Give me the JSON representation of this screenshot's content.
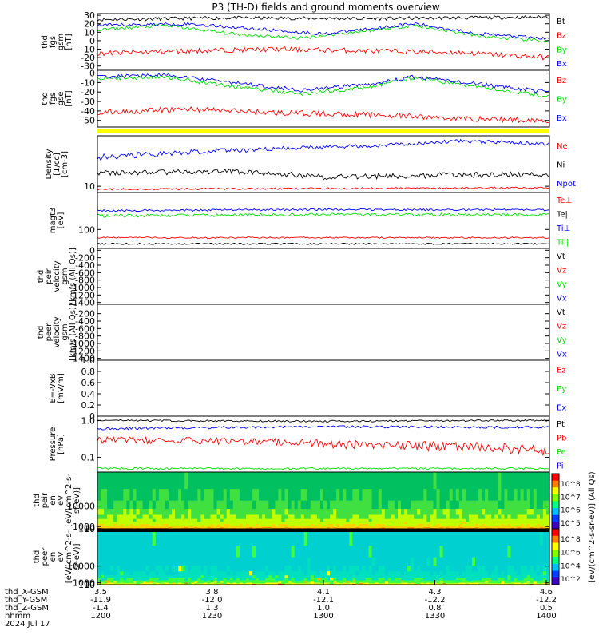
{
  "title": "P3 (TH-D) fields and ground moments overview",
  "chart_data": [
    {
      "type": "line",
      "panel": "fgs_gsm",
      "ylabel": [
        "thd",
        "fgs",
        "gsm",
        "[nT]"
      ],
      "yticks": [
        30,
        20,
        10,
        0,
        -10,
        -20,
        -30
      ],
      "ylim": [
        -35,
        32
      ],
      "series": [
        {
          "name": "Bt",
          "color": "#000000",
          "profile": [
            [
              0,
              25
            ],
            [
              0.3,
              27
            ],
            [
              0.6,
              26
            ],
            [
              0.8,
              27
            ],
            [
              1,
              28
            ]
          ],
          "noise": 2
        },
        {
          "name": "Bz",
          "color": "#ff0000",
          "profile": [
            [
              0,
              -15
            ],
            [
              0.2,
              -12
            ],
            [
              0.4,
              -10
            ],
            [
              0.6,
              -12
            ],
            [
              0.8,
              -14
            ],
            [
              1,
              -20
            ]
          ],
          "noise": 3
        },
        {
          "name": "By",
          "color": "#00dd00",
          "profile": [
            [
              0,
              13
            ],
            [
              0.15,
              18
            ],
            [
              0.3,
              8
            ],
            [
              0.45,
              3
            ],
            [
              0.6,
              12
            ],
            [
              0.7,
              18
            ],
            [
              0.85,
              5
            ],
            [
              1,
              -1
            ]
          ],
          "noise": 2
        },
        {
          "name": "Bx",
          "color": "#0000ff",
          "profile": [
            [
              0,
              18
            ],
            [
              0.2,
              20
            ],
            [
              0.4,
              12
            ],
            [
              0.5,
              8
            ],
            [
              0.7,
              20
            ],
            [
              0.85,
              8
            ],
            [
              1,
              2
            ]
          ],
          "noise": 2
        }
      ]
    },
    {
      "type": "line",
      "panel": "fgs_gse",
      "ylabel": [
        "thd",
        "fgs",
        "gse",
        "[nT]"
      ],
      "yticks": [
        0,
        -10,
        -20,
        -30,
        -40,
        -50
      ],
      "ylim": [
        -57,
        3
      ],
      "series": [
        {
          "name": "Bz",
          "color": "#ff0000",
          "profile": [
            [
              0,
              -42
            ],
            [
              0.2,
              -38
            ],
            [
              0.4,
              -42
            ],
            [
              0.6,
              -44
            ],
            [
              0.8,
              -48
            ],
            [
              1,
              -50
            ]
          ],
          "noise": 3
        },
        {
          "name": "By",
          "color": "#00dd00",
          "profile": [
            [
              0,
              -6
            ],
            [
              0.15,
              -4
            ],
            [
              0.3,
              -14
            ],
            [
              0.45,
              -22
            ],
            [
              0.6,
              -15
            ],
            [
              0.7,
              -5
            ],
            [
              0.85,
              -15
            ],
            [
              1,
              -25
            ]
          ],
          "noise": 2
        },
        {
          "name": "Bx",
          "color": "#0000ff",
          "profile": [
            [
              0,
              -4
            ],
            [
              0.15,
              -2
            ],
            [
              0.3,
              -10
            ],
            [
              0.45,
              -18
            ],
            [
              0.6,
              -12
            ],
            [
              0.7,
              -4
            ],
            [
              0.85,
              -12
            ],
            [
              1,
              -20
            ]
          ],
          "noise": 2
        }
      ]
    },
    {
      "type": "line",
      "panel": "density",
      "log": true,
      "ylabel": [
        "Density",
        "[1/cc]",
        "[cm-3]"
      ],
      "yticks": [
        10
      ],
      "ylim": [
        8,
        60
      ],
      "series": [
        {
          "name": "Ne",
          "color": "#ff0000",
          "profile": [
            [
              0,
              9
            ],
            [
              1,
              9.5
            ]
          ],
          "noise": 0.3
        },
        {
          "name": "Ni",
          "color": "#000000",
          "profile": [
            [
              0,
              16
            ],
            [
              0.3,
              17
            ],
            [
              0.5,
              14
            ],
            [
              0.8,
              15
            ],
            [
              1,
              15
            ]
          ],
          "noise": 1.5
        },
        {
          "name": "Npot",
          "color": "#0000ff",
          "profile": [
            [
              0,
              28
            ],
            [
              0.3,
              36
            ],
            [
              0.6,
              42
            ],
            [
              0.8,
              50
            ],
            [
              1,
              45
            ]
          ],
          "noise": 3
        }
      ]
    },
    {
      "type": "line",
      "panel": "temperature",
      "log": true,
      "ylabel": [
        "magt3",
        "[eV]"
      ],
      "yticks": [
        100
      ],
      "ylim": [
        25,
        1500
      ],
      "series": [
        {
          "name": "Te⊥",
          "color": "#ff0000",
          "profile": [
            [
              0,
              55
            ],
            [
              1,
              55
            ]
          ],
          "noise": 3
        },
        {
          "name": "Te||",
          "color": "#000000",
          "profile": [
            [
              0,
              35
            ],
            [
              1,
              35
            ]
          ],
          "noise": 2
        },
        {
          "name": "Ti⊥",
          "color": "#0000ff",
          "profile": [
            [
              0,
              400
            ],
            [
              0.5,
              430
            ],
            [
              1,
              420
            ]
          ],
          "noise": 30
        },
        {
          "name": "Ti||",
          "color": "#00dd00",
          "profile": [
            [
              0,
              270
            ],
            [
              0.5,
              300
            ],
            [
              1,
              290
            ]
          ],
          "noise": 30
        }
      ]
    },
    {
      "type": "line",
      "panel": "peir_velocity",
      "ylabel": [
        "thd",
        "peir",
        "velocity",
        "gsm",
        "[km/s (All Qs)]"
      ],
      "yticks": [
        0,
        -200,
        -400,
        -600,
        -800,
        -1000,
        -1200,
        -1400
      ],
      "ylim": [
        -1450,
        50
      ],
      "series": [
        {
          "name": "Vt",
          "color": "#000000"
        },
        {
          "name": "Vz",
          "color": "#ff0000"
        },
        {
          "name": "Vy",
          "color": "#00dd00"
        },
        {
          "name": "Vx",
          "color": "#0000ff"
        }
      ]
    },
    {
      "type": "line",
      "panel": "peer_velocity",
      "ylabel": [
        "thd",
        "peer",
        "velocity",
        "gsm",
        "[km/s (All Qs)]"
      ],
      "yticks": [
        -200,
        -400,
        -600,
        -800,
        -1000,
        -1200,
        -1400
      ],
      "ylim": [
        -1450,
        50
      ],
      "series": [
        {
          "name": "Vt",
          "color": "#000000"
        },
        {
          "name": "Vz",
          "color": "#ff0000"
        },
        {
          "name": "Vy",
          "color": "#00dd00"
        },
        {
          "name": "Vx",
          "color": "#0000ff"
        }
      ]
    },
    {
      "type": "line",
      "panel": "efield",
      "ylabel": [
        "E=-VxB",
        "[mV/m]"
      ],
      "yticks": [
        1.0,
        0.8,
        0.6,
        0.4,
        0.2,
        0.0
      ],
      "ylim": [
        0,
        1
      ],
      "series": [
        {
          "name": "Ez",
          "color": "#ff0000"
        },
        {
          "name": "Ey",
          "color": "#00dd00"
        },
        {
          "name": "Ex",
          "color": "#0000ff"
        }
      ]
    },
    {
      "type": "line",
      "panel": "pressure",
      "log": true,
      "ylabel": [
        "Pressure",
        "[nPa]"
      ],
      "yticks": [
        1.0,
        0.1
      ],
      "ylim": [
        0.04,
        1.3
      ],
      "series": [
        {
          "name": "Pt",
          "color": "#000000",
          "profile": [
            [
              0,
              1.0
            ],
            [
              0.5,
              0.95
            ],
            [
              1,
              1.0
            ]
          ],
          "noise": 0.05
        },
        {
          "name": "Pb",
          "color": "#ff0000",
          "profile": [
            [
              0,
              0.3
            ],
            [
              0.3,
              0.28
            ],
            [
              0.6,
              0.22
            ],
            [
              0.85,
              0.2
            ],
            [
              1,
              0.15
            ]
          ],
          "noise": 0.06
        },
        {
          "name": "Pe",
          "color": "#00dd00",
          "profile": [
            [
              0,
              0.05
            ],
            [
              1,
              0.05
            ]
          ],
          "noise": 0.003
        },
        {
          "name": "Pi",
          "color": "#0000ff",
          "profile": [
            [
              0,
              0.6
            ],
            [
              0.5,
              0.68
            ],
            [
              1,
              0.65
            ]
          ],
          "noise": 0.05
        }
      ]
    },
    {
      "type": "heatmap",
      "panel": "peir_spectrogram",
      "ylabel": [
        "thd",
        "peir",
        "en",
        "eV",
        "[eV/(cm^2-s-",
        "sr-eV)]"
      ],
      "yticks": [
        10000,
        1000,
        100,
        10
      ],
      "ylim": [
        7,
        25000
      ],
      "zlabel": "[eV/(cm^2-s-sr-eV)] (All Qs)",
      "zticks": [
        "10^8",
        "10^7",
        "10^6",
        "10^5"
      ]
    },
    {
      "type": "heatmap",
      "panel": "peer_spectrogram",
      "ylabel": [
        "thd",
        "peer",
        "en",
        "eV",
        "[eV/(cm^2-s-",
        "sr-eV)]"
      ],
      "yticks": [
        10000,
        1000,
        100,
        10
      ],
      "ylim": [
        7,
        30000
      ],
      "zticks": [
        "10^8",
        "10^6",
        "10^4",
        "10^2"
      ]
    }
  ],
  "time_axis": {
    "rows": [
      {
        "label": "thd_X-GSM",
        "values": [
          "3.5",
          "3.8",
          "4.1",
          "4.3",
          "4.6"
        ]
      },
      {
        "label": "thd_Y-GSM",
        "values": [
          "-11.9",
          "-12.0",
          "-12.1",
          "-12.2",
          "-12.2"
        ]
      },
      {
        "label": "thd_Z-GSM",
        "values": [
          "-1.4",
          "1.3",
          "1.0",
          "0.8",
          "0.5"
        ]
      },
      {
        "label": "hhmm",
        "values": [
          "1200",
          "1230",
          "1300",
          "1330",
          "1400"
        ]
      }
    ],
    "date": "2024 Jul 17"
  },
  "colors": {
    "black": "#000000",
    "red": "#ff0000",
    "green": "#00dd00",
    "blue": "#0000ff",
    "bar": "#ffff00"
  }
}
